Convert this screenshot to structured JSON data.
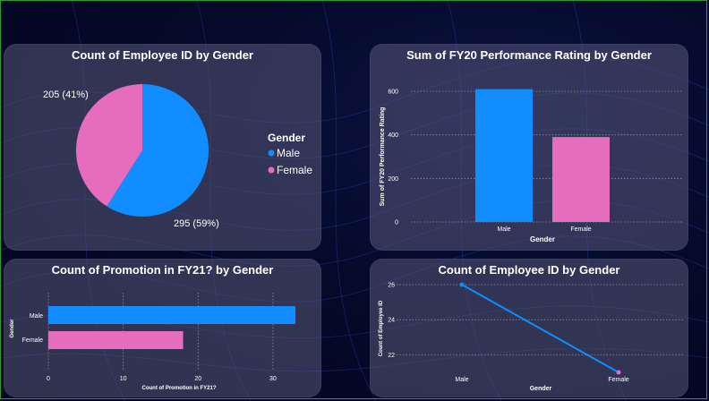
{
  "colors": {
    "male": "#118dff",
    "female": "#e66cbd",
    "grid": "#c9c9d6"
  },
  "chart_data": [
    {
      "type": "pie",
      "title": "Count of Employee ID by Gender",
      "legend_title": "Gender",
      "legend_position": "right",
      "categories": [
        "Male",
        "Female"
      ],
      "values": [
        295,
        205
      ],
      "data_labels": [
        "295 (59%)",
        "205 (41%)"
      ]
    },
    {
      "type": "bar",
      "title": "Sum of FY20 Performance Rating by Gender",
      "categories": [
        "Male",
        "Female"
      ],
      "values": [
        610,
        390
      ],
      "xlabel": "Gender",
      "ylabel": "Sum of FY20 Performance Rating",
      "ylim": [
        0,
        600
      ],
      "yticks": [
        0,
        200,
        400,
        600
      ],
      "grid": true
    },
    {
      "type": "bar",
      "orientation": "horizontal",
      "title": "Count of Promotion in FY21? by Gender",
      "categories": [
        "Male",
        "Female"
      ],
      "values": [
        33,
        18
      ],
      "xlabel": "Count of Promotion in FY21?",
      "ylabel": "Gender",
      "xlim": [
        0,
        33
      ],
      "xticks": [
        0,
        10,
        20,
        30
      ],
      "grid": true
    },
    {
      "type": "line",
      "title": "Count of Employee ID by Gender",
      "categories": [
        "Male",
        "Female"
      ],
      "values": [
        26,
        21
      ],
      "xlabel": "Gender",
      "ylabel": "Count of Employee ID",
      "ylim": [
        21,
        26
      ],
      "yticks": [
        22,
        24,
        26
      ],
      "grid": true
    }
  ]
}
